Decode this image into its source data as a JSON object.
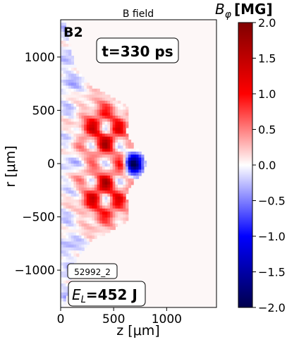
{
  "chart_data": {
    "type": "heatmap",
    "title": "B field",
    "panel_label": "B2",
    "time_label": "t=330 ps",
    "shot_id": "52992_2",
    "energy_label_value": "=452 J",
    "xlabel": "z [μm]",
    "ylabel": "r [μm]",
    "xlim": [
      0,
      1470
    ],
    "ylim": [
      -1350,
      1350
    ],
    "x_ticks": [
      "0",
      "500",
      "1000"
    ],
    "x_tick_values": [
      0,
      500,
      1000
    ],
    "y_ticks": [
      "−1000",
      "−500",
      "0",
      "500",
      "1000"
    ],
    "y_tick_values": [
      -1000,
      -500,
      0,
      500,
      1000
    ],
    "colorbar": {
      "label": "[MG]",
      "min": -2.0,
      "max": 2.0,
      "tick_values": [
        2.0,
        1.5,
        1.0,
        0.5,
        0.0,
        -0.5,
        -1.0,
        -1.5,
        -2.0
      ],
      "ticks": [
        "2.0",
        "1.5",
        "1.0",
        "0.5",
        "0.0",
        "−0.5",
        "−1.0",
        "−1.5",
        "−2.0"
      ],
      "colormap": "seismic",
      "colors": {
        "low": "#00004c",
        "mid": "#ffffff",
        "high": "#800000"
      }
    },
    "features": {
      "plasma_boundary_z_at_r0": 820,
      "strong_negative_region_z": [
        600,
        790
      ],
      "positive_lobes_z": [
        200,
        600
      ],
      "bfield_range_shown": [
        -2.0,
        2.0
      ]
    }
  }
}
